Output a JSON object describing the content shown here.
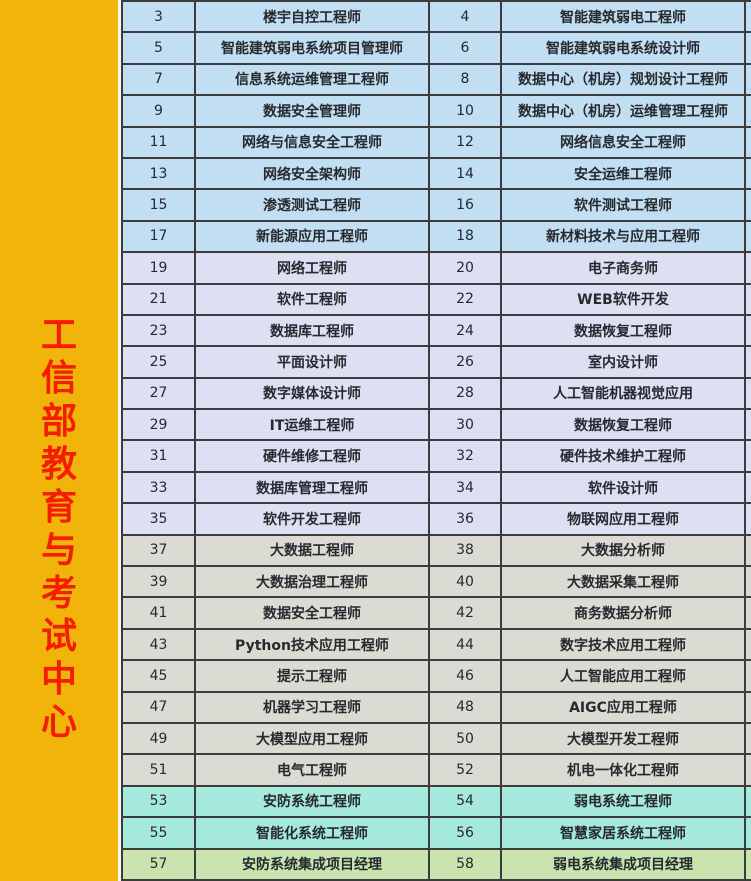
{
  "sidebar": {
    "text": "工信部教育与考试中心",
    "text_color": "#F51D00",
    "background_color": "#F0B40A"
  },
  "table": {
    "group_colors": {
      "blue": "#C2DEF2",
      "lavender": "#DCE0F2",
      "gray": "#DBDBD3",
      "teal": "#A6E9DD",
      "green": "#C9E4AE"
    },
    "border_color": "#3c3c3c",
    "rows": [
      {
        "n1": "3",
        "t1": "楼宇自控工程师",
        "n2": "4",
        "t2": "智能建筑弱电工程师",
        "group": "blue"
      },
      {
        "n1": "5",
        "t1": "智能建筑弱电系统项目管理师",
        "n2": "6",
        "t2": "智能建筑弱电系统设计师",
        "group": "blue"
      },
      {
        "n1": "7",
        "t1": "信息系统运维管理工程师",
        "n2": "8",
        "t2": "数据中心（机房）规划设计工程师",
        "group": "blue"
      },
      {
        "n1": "9",
        "t1": "数据安全管理师",
        "n2": "10",
        "t2": "数据中心（机房）运维管理工程师",
        "group": "blue"
      },
      {
        "n1": "11",
        "t1": "网络与信息安全工程师",
        "n2": "12",
        "t2": "网络信息安全工程师",
        "group": "blue"
      },
      {
        "n1": "13",
        "t1": "网络安全架构师",
        "n2": "14",
        "t2": "安全运维工程师",
        "group": "blue"
      },
      {
        "n1": "15",
        "t1": "渗透测试工程师",
        "n2": "16",
        "t2": "软件测试工程师",
        "group": "blue"
      },
      {
        "n1": "17",
        "t1": "新能源应用工程师",
        "n2": "18",
        "t2": "新材料技术与应用工程师",
        "group": "blue"
      },
      {
        "n1": "19",
        "t1": "网络工程师",
        "n2": "20",
        "t2": "电子商务师",
        "group": "lavender"
      },
      {
        "n1": "21",
        "t1": "软件工程师",
        "n2": "22",
        "t2": "WEB软件开发",
        "group": "lavender"
      },
      {
        "n1": "23",
        "t1": "数据库工程师",
        "n2": "24",
        "t2": "数据恢复工程师",
        "group": "lavender"
      },
      {
        "n1": "25",
        "t1": "平面设计师",
        "n2": "26",
        "t2": "室内设计师",
        "group": "lavender"
      },
      {
        "n1": "27",
        "t1": "数字媒体设计师",
        "n2": "28",
        "t2": "人工智能机器视觉应用",
        "group": "lavender"
      },
      {
        "n1": "29",
        "t1": "IT运维工程师",
        "n2": "30",
        "t2": "数据恢复工程师",
        "group": "lavender"
      },
      {
        "n1": "31",
        "t1": "硬件维修工程师",
        "n2": "32",
        "t2": "硬件技术维护工程师",
        "group": "lavender"
      },
      {
        "n1": "33",
        "t1": "数据库管理工程师",
        "n2": "34",
        "t2": "软件设计师",
        "group": "lavender"
      },
      {
        "n1": "35",
        "t1": "软件开发工程师",
        "n2": "36",
        "t2": "物联网应用工程师",
        "group": "lavender"
      },
      {
        "n1": "37",
        "t1": "大数据工程师",
        "n2": "38",
        "t2": "大数据分析师",
        "group": "gray"
      },
      {
        "n1": "39",
        "t1": "大数据治理工程师",
        "n2": "40",
        "t2": "大数据采集工程师",
        "group": "gray"
      },
      {
        "n1": "41",
        "t1": "数据安全工程师",
        "n2": "42",
        "t2": "商务数据分析师",
        "group": "gray"
      },
      {
        "n1": "43",
        "t1": "Python技术应用工程师",
        "n2": "44",
        "t2": "数字技术应用工程师",
        "group": "gray"
      },
      {
        "n1": "45",
        "t1": "提示工程师",
        "n2": "46",
        "t2": "人工智能应用工程师",
        "group": "gray"
      },
      {
        "n1": "47",
        "t1": "机器学习工程师",
        "n2": "48",
        "t2": "AIGC应用工程师",
        "group": "gray"
      },
      {
        "n1": "49",
        "t1": "大模型应用工程师",
        "n2": "50",
        "t2": "大模型开发工程师",
        "group": "gray"
      },
      {
        "n1": "51",
        "t1": "电气工程师",
        "n2": "52",
        "t2": "机电一体化工程师",
        "group": "gray"
      },
      {
        "n1": "53",
        "t1": "安防系统工程师",
        "n2": "54",
        "t2": "弱电系统工程师",
        "group": "teal"
      },
      {
        "n1": "55",
        "t1": "智能化系统工程师",
        "n2": "56",
        "t2": "智慧家居系统工程师",
        "group": "teal"
      },
      {
        "n1": "57",
        "t1": "安防系统集成项目经理",
        "n2": "58",
        "t2": "弱电系统集成项目经理",
        "group": "green"
      }
    ]
  }
}
